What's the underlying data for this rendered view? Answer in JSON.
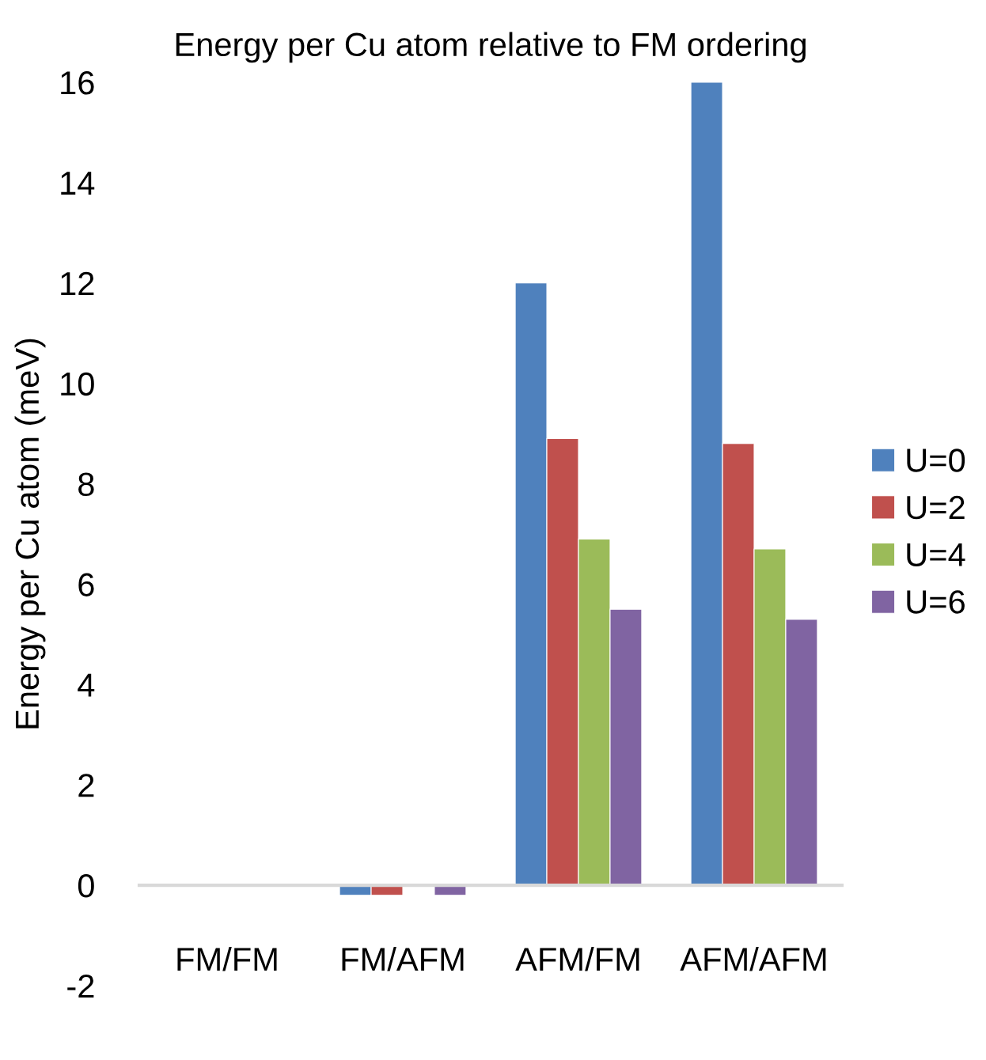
{
  "chart_data": {
    "type": "bar",
    "title": "Energy per Cu atom relative to FM ordering",
    "ylabel": "Energy per Cu atom (meV)",
    "categories": [
      "FM/FM",
      "FM/AFM",
      "AFM/FM",
      "AFM/AFM"
    ],
    "series": [
      {
        "name": "U=0",
        "color": "#4f81bd",
        "values": [
          null,
          -0.2,
          12.0,
          16.0
        ]
      },
      {
        "name": "U=2",
        "color": "#c0504d",
        "values": [
          null,
          -0.2,
          8.9,
          8.8
        ]
      },
      {
        "name": "U=4",
        "color": "#9bbb59",
        "values": [
          null,
          null,
          6.9,
          6.7
        ]
      },
      {
        "name": "U=6",
        "color": "#8064a2",
        "values": [
          null,
          -0.2,
          5.5,
          5.3
        ]
      }
    ],
    "ylim": [
      -2,
      16
    ],
    "yticks": [
      -2,
      0,
      2,
      4,
      6,
      8,
      10,
      12,
      14,
      16
    ],
    "grid": false,
    "legend": "right"
  }
}
